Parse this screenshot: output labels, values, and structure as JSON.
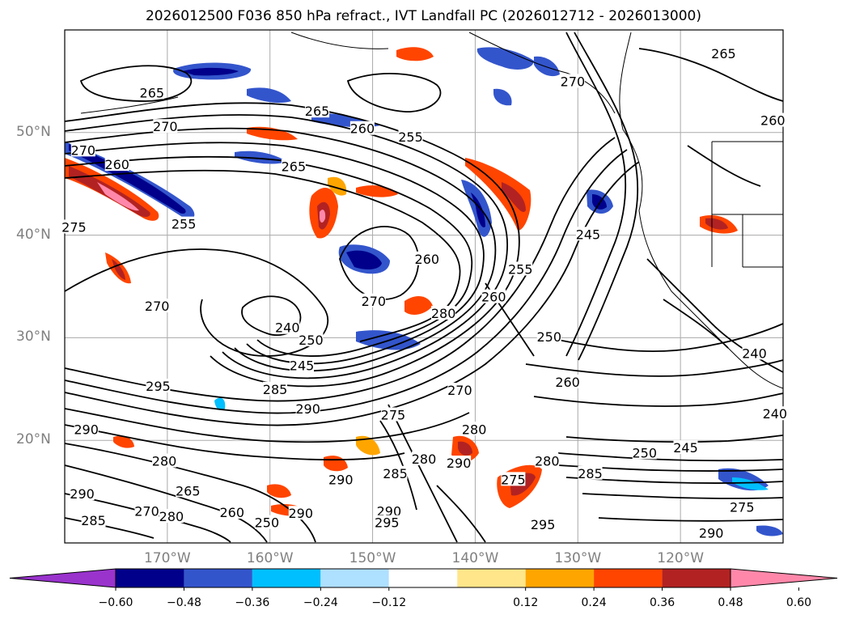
{
  "title": "2026012500 F036 850 hPa refract., IVT Landfall PC (2026012712 - 2026013000)",
  "map": {
    "lon_range": [
      -180,
      -110
    ],
    "lat_range": [
      10,
      60
    ],
    "lat_ticks": [
      {
        "value": 50,
        "label": "50°N"
      },
      {
        "value": 40,
        "label": "40°N"
      },
      {
        "value": 30,
        "label": "30°N"
      },
      {
        "value": 20,
        "label": "20°N"
      }
    ],
    "lon_ticks": [
      {
        "value": -170,
        "label": "170°W"
      },
      {
        "value": -160,
        "label": "160°W"
      },
      {
        "value": -150,
        "label": "150°W"
      },
      {
        "value": -140,
        "label": "140°W"
      },
      {
        "value": -130,
        "label": "130°W"
      },
      {
        "value": -120,
        "label": "120°W"
      }
    ],
    "contour_labels": [
      {
        "text": "265",
        "lon": -171.5,
        "lat": 53.9
      },
      {
        "text": "270",
        "lon": -178.2,
        "lat": 48.3
      },
      {
        "text": "270",
        "lon": -170.2,
        "lat": 50.6
      },
      {
        "text": "265",
        "lon": -155.4,
        "lat": 52.1
      },
      {
        "text": "260",
        "lon": -151.0,
        "lat": 50.4
      },
      {
        "text": "255",
        "lon": -146.3,
        "lat": 49.6
      },
      {
        "text": "265",
        "lon": -157.7,
        "lat": 46.7
      },
      {
        "text": "260",
        "lon": -174.9,
        "lat": 46.9
      },
      {
        "text": "255",
        "lon": -168.4,
        "lat": 41.1
      },
      {
        "text": "275",
        "lon": -179.1,
        "lat": 40.8
      },
      {
        "text": "270",
        "lon": -171.0,
        "lat": 33.1
      },
      {
        "text": "260",
        "lon": -144.7,
        "lat": 37.7
      },
      {
        "text": "270",
        "lon": -149.9,
        "lat": 33.6
      },
      {
        "text": "240",
        "lon": -158.3,
        "lat": 31.0
      },
      {
        "text": "250",
        "lon": -156.0,
        "lat": 29.8
      },
      {
        "text": "245",
        "lon": -156.9,
        "lat": 27.3
      },
      {
        "text": "280",
        "lon": -143.1,
        "lat": 32.4
      },
      {
        "text": "260",
        "lon": -138.2,
        "lat": 34.0
      },
      {
        "text": "255",
        "lon": -135.6,
        "lat": 36.7
      },
      {
        "text": "245",
        "lon": -129.0,
        "lat": 40.1
      },
      {
        "text": "250",
        "lon": -132.8,
        "lat": 30.1
      },
      {
        "text": "260",
        "lon": -131.0,
        "lat": 25.7
      },
      {
        "text": "270",
        "lon": -130.5,
        "lat": 55.0
      },
      {
        "text": "265",
        "lon": -115.8,
        "lat": 57.7
      },
      {
        "text": "260",
        "lon": -111.0,
        "lat": 51.2
      },
      {
        "text": "240",
        "lon": -112.8,
        "lat": 28.5
      },
      {
        "text": "240",
        "lon": -110.8,
        "lat": 22.6
      },
      {
        "text": "250",
        "lon": -123.5,
        "lat": 18.8
      },
      {
        "text": "245",
        "lon": -119.5,
        "lat": 19.3
      },
      {
        "text": "295",
        "lon": -170.9,
        "lat": 25.3
      },
      {
        "text": "285",
        "lon": -159.5,
        "lat": 25.0
      },
      {
        "text": "290",
        "lon": -156.3,
        "lat": 23.1
      },
      {
        "text": "290",
        "lon": -177.9,
        "lat": 21.1
      },
      {
        "text": "280",
        "lon": -170.3,
        "lat": 18.0
      },
      {
        "text": "275",
        "lon": -148.0,
        "lat": 22.5
      },
      {
        "text": "270",
        "lon": -141.5,
        "lat": 24.9
      },
      {
        "text": "280",
        "lon": -140.1,
        "lat": 21.1
      },
      {
        "text": "280",
        "lon": -145.0,
        "lat": 18.2
      },
      {
        "text": "285",
        "lon": -147.8,
        "lat": 16.8
      },
      {
        "text": "280",
        "lon": -133.0,
        "lat": 18.0
      },
      {
        "text": "275",
        "lon": -136.3,
        "lat": 16.2
      },
      {
        "text": "285",
        "lon": -128.8,
        "lat": 16.8
      },
      {
        "text": "290",
        "lon": -141.6,
        "lat": 17.8
      },
      {
        "text": "290",
        "lon": -153.1,
        "lat": 16.2
      },
      {
        "text": "265",
        "lon": -168.0,
        "lat": 15.1
      },
      {
        "text": "260",
        "lon": -163.7,
        "lat": 13.0
      },
      {
        "text": "250",
        "lon": -160.3,
        "lat": 12.0
      },
      {
        "text": "280",
        "lon": -169.6,
        "lat": 12.6
      },
      {
        "text": "270",
        "lon": -172.0,
        "lat": 13.1
      },
      {
        "text": "290",
        "lon": -178.3,
        "lat": 14.8
      },
      {
        "text": "285",
        "lon": -177.2,
        "lat": 12.2
      },
      {
        "text": "290",
        "lon": -148.4,
        "lat": 13.1
      },
      {
        "text": "295",
        "lon": -148.6,
        "lat": 12.0
      },
      {
        "text": "295",
        "lon": -133.4,
        "lat": 11.8
      },
      {
        "text": "290",
        "lon": -117.0,
        "lat": 11.0
      },
      {
        "text": "275",
        "lon": -114.0,
        "lat": 13.5
      },
      {
        "text": "290",
        "lon": -157.0,
        "lat": 12.9
      }
    ]
  },
  "colorbar": {
    "colors": [
      "#9933cc",
      "#00008b",
      "#3355cc",
      "#00bfff",
      "#aee0ff",
      "#ffffff",
      "#ffe68a",
      "#ffa500",
      "#ff4500",
      "#b22222",
      "#ff88aa"
    ],
    "tick_labels": [
      "−0.60",
      "−0.48",
      "−0.36",
      "−0.24",
      "−0.12",
      "0.12",
      "0.24",
      "0.36",
      "0.48",
      "0.60"
    ]
  }
}
